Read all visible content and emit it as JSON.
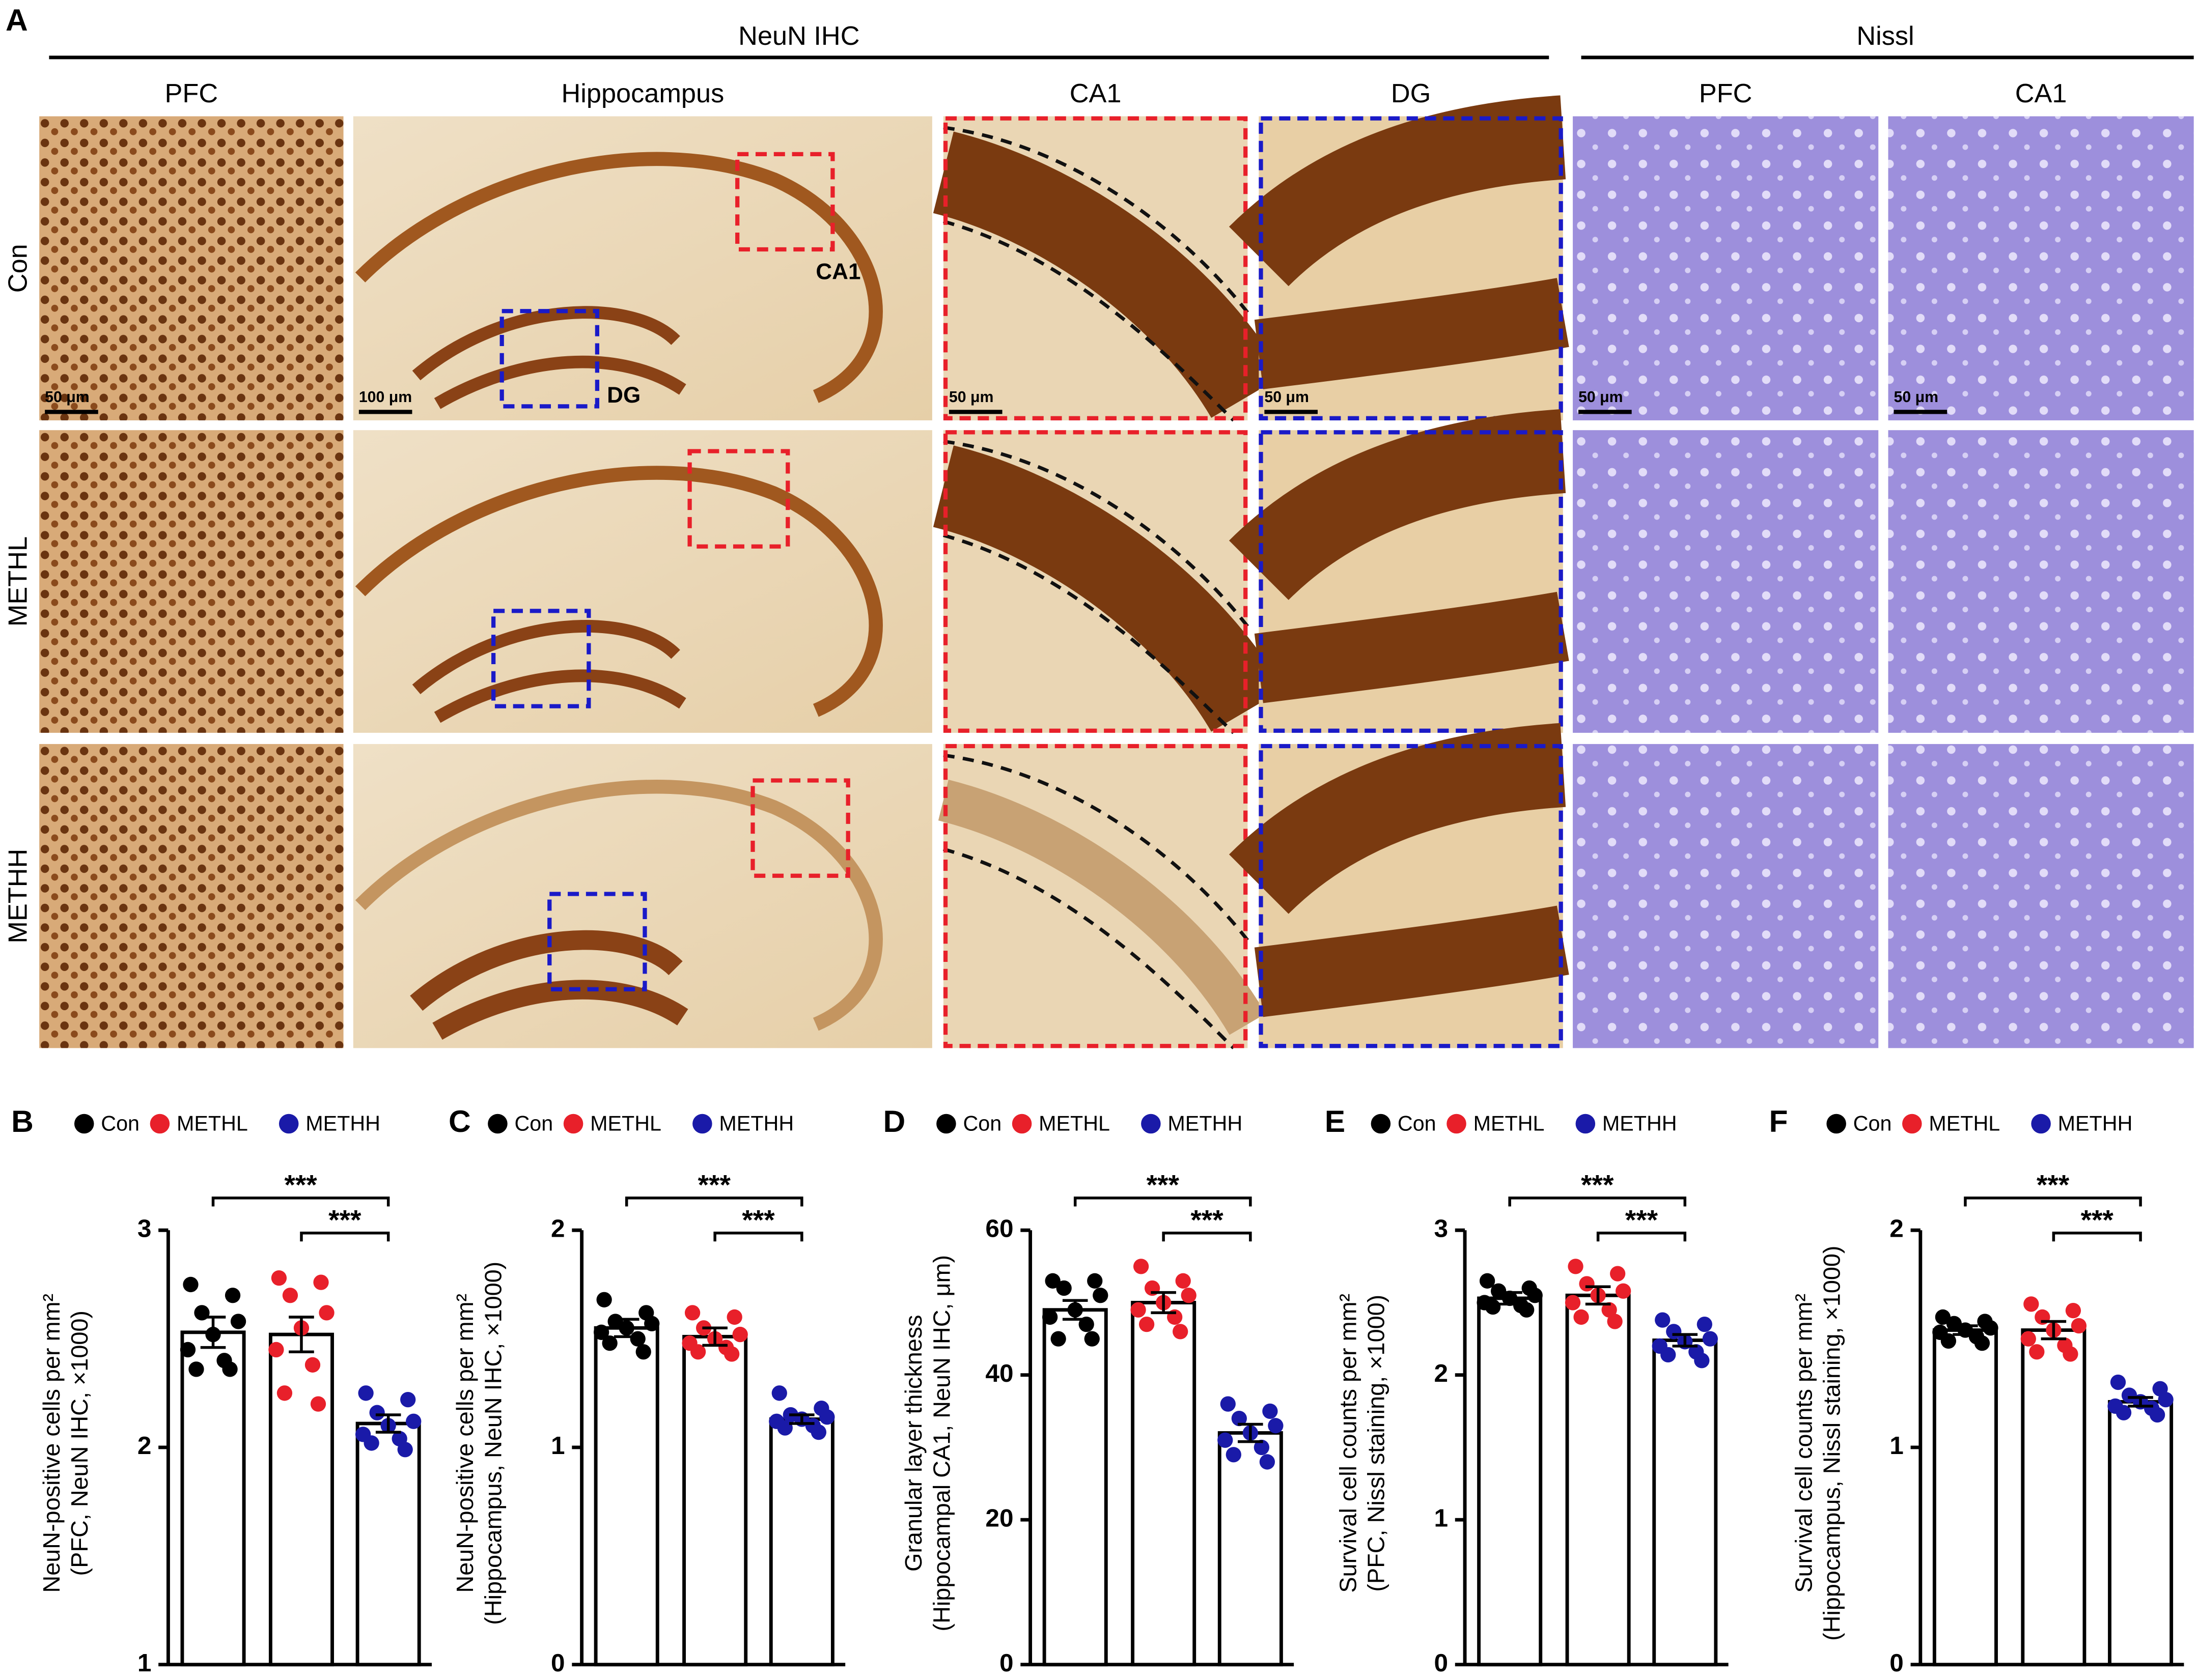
{
  "panel_a": {
    "panel": "A",
    "groups": [
      "NeuN IHC",
      "Nissl"
    ],
    "columns": [
      "PFC",
      "Hippocampus",
      "CA1",
      "DG",
      "PFC",
      "CA1"
    ],
    "rows": [
      "Con",
      "METHL",
      "METHH"
    ],
    "scale_bars": [
      "50 μm",
      "100 μm",
      "50 μm",
      "50 μm",
      "50 μm",
      "50 μm"
    ],
    "region_labels": [
      "CA1",
      "DG"
    ]
  },
  "chart_data": [
    {
      "type": "bar",
      "panel": "B",
      "ylabel": [
        "NeuN-positive cells per mm²",
        "(PFC, NeuN IHC, ×1000)"
      ],
      "ylim": [
        1,
        3
      ],
      "yticks": [
        1,
        2,
        3
      ],
      "series": [
        {
          "name": "Con",
          "color": "#000000",
          "values": [
            2.53
          ],
          "errors": [
            0.07
          ],
          "points": [
            2.75,
            2.7,
            2.62,
            2.58,
            2.52,
            2.45,
            2.4,
            2.36,
            2.36
          ]
        },
        {
          "name": "METHL",
          "color": "#e8202a",
          "values": [
            2.52
          ],
          "errors": [
            0.08
          ],
          "points": [
            2.78,
            2.76,
            2.7,
            2.62,
            2.55,
            2.45,
            2.38,
            2.25,
            2.2
          ]
        },
        {
          "name": "METHH",
          "color": "#1a1aa8",
          "values": [
            2.11
          ],
          "errors": [
            0.04
          ],
          "points": [
            2.25,
            2.22,
            2.16,
            2.12,
            2.1,
            2.06,
            2.04,
            2.02,
            1.99
          ]
        }
      ],
      "annotations": [
        {
          "text": "***",
          "between": [
            "Con",
            "METHH"
          ]
        },
        {
          "text": "***",
          "between": [
            "METHL",
            "METHH"
          ]
        }
      ]
    },
    {
      "type": "bar",
      "panel": "C",
      "ylabel": [
        "NeuN-positive cells per mm²",
        "(Hippocampus, NeuN IHC, ×1000)"
      ],
      "ylim": [
        0,
        2
      ],
      "yticks": [
        0,
        1,
        2
      ],
      "series": [
        {
          "name": "Con",
          "color": "#000000",
          "values": [
            1.55
          ],
          "errors": [
            0.04
          ],
          "points": [
            1.68,
            1.62,
            1.58,
            1.57,
            1.55,
            1.53,
            1.5,
            1.48,
            1.44
          ]
        },
        {
          "name": "METHL",
          "color": "#e8202a",
          "values": [
            1.51
          ],
          "errors": [
            0.04
          ],
          "points": [
            1.62,
            1.6,
            1.55,
            1.52,
            1.5,
            1.48,
            1.46,
            1.44,
            1.43
          ]
        },
        {
          "name": "METHH",
          "color": "#1a1aa8",
          "values": [
            1.13
          ],
          "errors": [
            0.02
          ],
          "points": [
            1.25,
            1.18,
            1.15,
            1.14,
            1.13,
            1.12,
            1.1,
            1.09,
            1.07
          ]
        }
      ],
      "annotations": [
        {
          "text": "***",
          "between": [
            "Con",
            "METHH"
          ]
        },
        {
          "text": "***",
          "between": [
            "METHL",
            "METHH"
          ]
        }
      ]
    },
    {
      "type": "bar",
      "panel": "D",
      "ylabel": [
        "Granular layer thickness",
        "(Hippocampal CA1, NeuN IHC, μm)"
      ],
      "ylim": [
        0,
        60
      ],
      "yticks": [
        0,
        20,
        40,
        60
      ],
      "series": [
        {
          "name": "Con",
          "color": "#000000",
          "values": [
            49
          ],
          "errors": [
            1.3
          ],
          "points": [
            53,
            53,
            52,
            51,
            49,
            48,
            47,
            45,
            45
          ]
        },
        {
          "name": "METHL",
          "color": "#e8202a",
          "values": [
            50
          ],
          "errors": [
            1.4
          ],
          "points": [
            55,
            53,
            52,
            51,
            50,
            49,
            48,
            47,
            46
          ]
        },
        {
          "name": "METHH",
          "color": "#1a1aa8",
          "values": [
            32
          ],
          "errors": [
            1.2
          ],
          "points": [
            36,
            35,
            34,
            33,
            32,
            31,
            30,
            29,
            28
          ]
        }
      ],
      "annotations": [
        {
          "text": "***",
          "between": [
            "Con",
            "METHH"
          ]
        },
        {
          "text": "***",
          "between": [
            "METHL",
            "METHH"
          ]
        }
      ]
    },
    {
      "type": "bar",
      "panel": "E",
      "ylabel": [
        "Survival cell counts per mm²",
        "(PFC, Nissl staining, ×1000)"
      ],
      "ylim": [
        0,
        3
      ],
      "yticks": [
        0,
        1,
        2,
        3
      ],
      "series": [
        {
          "name": "Con",
          "color": "#000000",
          "values": [
            2.53
          ],
          "errors": [
            0.04
          ],
          "points": [
            2.65,
            2.6,
            2.58,
            2.55,
            2.53,
            2.5,
            2.48,
            2.47,
            2.45
          ]
        },
        {
          "name": "METHL",
          "color": "#e8202a",
          "values": [
            2.55
          ],
          "errors": [
            0.06
          ],
          "points": [
            2.75,
            2.7,
            2.63,
            2.58,
            2.55,
            2.5,
            2.45,
            2.4,
            2.37
          ]
        },
        {
          "name": "METHH",
          "color": "#1a1aa8",
          "values": [
            2.24
          ],
          "errors": [
            0.04
          ],
          "points": [
            2.38,
            2.35,
            2.3,
            2.25,
            2.23,
            2.2,
            2.16,
            2.14,
            2.1
          ]
        }
      ],
      "annotations": [
        {
          "text": "***",
          "between": [
            "Con",
            "METHH"
          ]
        },
        {
          "text": "***",
          "between": [
            "METHL",
            "METHH"
          ]
        }
      ]
    },
    {
      "type": "bar",
      "panel": "F",
      "ylabel": [
        "Survival cell counts per mm²",
        "(Hippocampus, Nissl staining, ×1000)"
      ],
      "ylim": [
        0,
        2
      ],
      "yticks": [
        0,
        1,
        2
      ],
      "series": [
        {
          "name": "Con",
          "color": "#000000",
          "values": [
            1.54
          ],
          "errors": [
            0.02
          ],
          "points": [
            1.6,
            1.58,
            1.57,
            1.55,
            1.54,
            1.53,
            1.51,
            1.49,
            1.48
          ]
        },
        {
          "name": "METHL",
          "color": "#e8202a",
          "values": [
            1.54
          ],
          "errors": [
            0.04
          ],
          "points": [
            1.66,
            1.63,
            1.6,
            1.56,
            1.54,
            1.5,
            1.47,
            1.44,
            1.43
          ]
        },
        {
          "name": "METHH",
          "color": "#1a1aa8",
          "values": [
            1.21
          ],
          "errors": [
            0.02
          ],
          "points": [
            1.3,
            1.27,
            1.24,
            1.22,
            1.21,
            1.19,
            1.18,
            1.16,
            1.15
          ]
        }
      ],
      "annotations": [
        {
          "text": "***",
          "between": [
            "Con",
            "METHH"
          ]
        },
        {
          "text": "***",
          "between": [
            "METHL",
            "METHH"
          ]
        }
      ]
    }
  ]
}
